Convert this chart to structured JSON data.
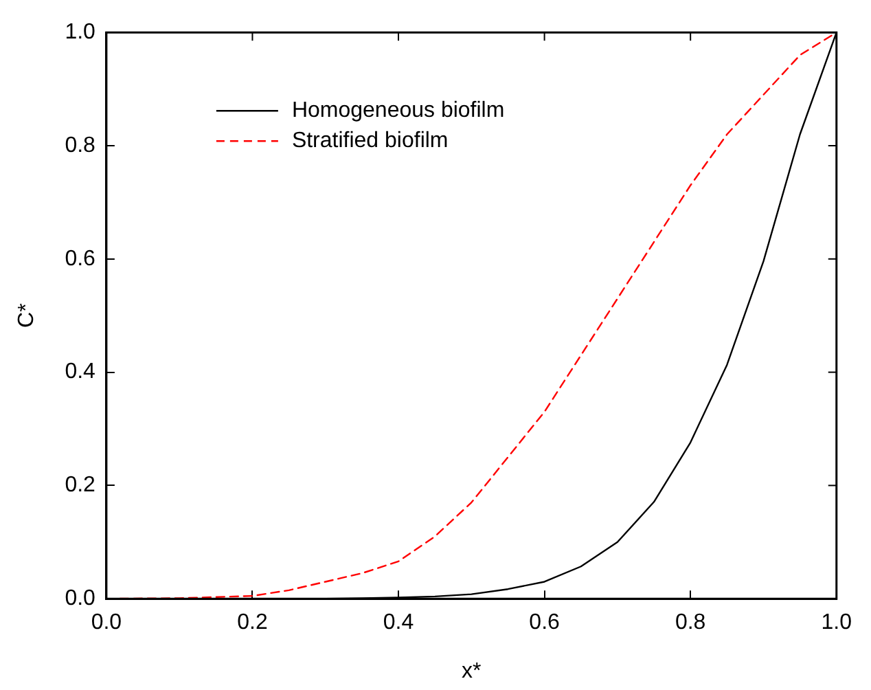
{
  "chart_data": {
    "type": "line",
    "xlabel": "x*",
    "ylabel": "C*",
    "xlim": [
      0,
      1
    ],
    "ylim": [
      0,
      1
    ],
    "xticks": [
      {
        "value": 0,
        "label": "0.0"
      },
      0.2,
      0.4,
      0.6,
      0.8,
      {
        "value": 1,
        "label": "1.0"
      }
    ],
    "yticks": [
      {
        "value": 0,
        "label": "0.0"
      },
      0.2,
      0.4,
      0.6,
      0.8,
      {
        "value": 1,
        "label": "1.0"
      }
    ],
    "grid": false,
    "legend": "top left",
    "marker": "none",
    "x": [
      0,
      0.1,
      0.2,
      0.25,
      0.3,
      0.35,
      0.4,
      0.45,
      0.5,
      0.55,
      0.6,
      0.65,
      0.7,
      0.75,
      0.8,
      0.85,
      0.9,
      0.95,
      1.0
    ],
    "series": [
      {
        "name": "Homogeneous biofilm",
        "color": "#000000",
        "line_style": "solid",
        "values": [
          0,
          0,
          0,
          0,
          0,
          0.001,
          0.002,
          0.004,
          0.008,
          0.017,
          0.03,
          0.057,
          0.1,
          0.171,
          0.276,
          0.413,
          0.596,
          0.82,
          1.0
        ]
      },
      {
        "name": "Stratified biofilm",
        "color": "#ff0000",
        "line_style": "dashed",
        "values": [
          0,
          0.001,
          0.005,
          0.015,
          0.03,
          0.045,
          0.066,
          0.11,
          0.17,
          0.25,
          0.33,
          0.43,
          0.53,
          0.63,
          0.73,
          0.82,
          0.89,
          0.96,
          1.0
        ]
      }
    ]
  }
}
